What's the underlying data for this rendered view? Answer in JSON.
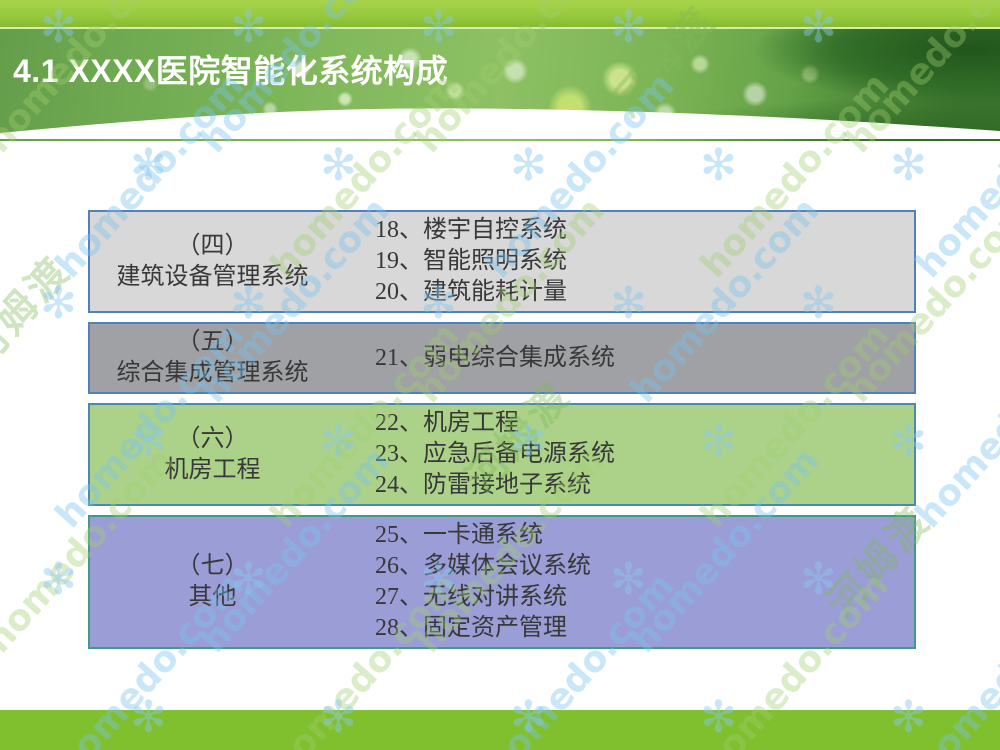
{
  "slide": {
    "title": "4.1 XXXX医院智能化系统构成"
  },
  "table": {
    "rows": [
      {
        "number": "（四）",
        "name": "建筑设备管理系统",
        "items": [
          "18、楼宇自控系统",
          "19、智能照明系统",
          "20、建筑能耗计量"
        ],
        "bg": "#d8d8d8",
        "border": "#4f81bd"
      },
      {
        "number": "（五）",
        "name": "综合集成管理系统",
        "items": [
          "21、弱电综合集成系统"
        ],
        "bg": "#9fa1a5",
        "border": "#4f81bd"
      },
      {
        "number": "（六）",
        "name": "机房工程",
        "items": [
          "22、机房工程",
          "23、应急后备电源系统",
          "24、防雷接地子系统"
        ],
        "bg": "#acd28a",
        "border": "#4b89ad"
      },
      {
        "number": "（七）",
        "name": "其他",
        "items": [
          "25、一卡通系统",
          "26、多媒体会议系统",
          "27、无线对讲系统",
          "28、固定资产管理"
        ],
        "bg": "#9b9dd6",
        "border": "#3f9a86"
      }
    ]
  },
  "watermark": {
    "brand": "homedo.com",
    "brand_cn": "河姆渡",
    "flower_icon": "✻"
  },
  "colors": {
    "topbar_green": "#95c63a",
    "footer_green": "#80bf2e",
    "header_leaf_green": "#8dc163",
    "header_dark_leaf": "#2c6824",
    "row_text": "#383838",
    "wm_green": "rgba(160,205,110,0.38)",
    "wm_blue": "rgba(120,195,240,0.40)",
    "wm_cn_green": "rgba(130,185,90,0.38)",
    "wm_flower": "rgba(135,200,240,0.45)"
  }
}
